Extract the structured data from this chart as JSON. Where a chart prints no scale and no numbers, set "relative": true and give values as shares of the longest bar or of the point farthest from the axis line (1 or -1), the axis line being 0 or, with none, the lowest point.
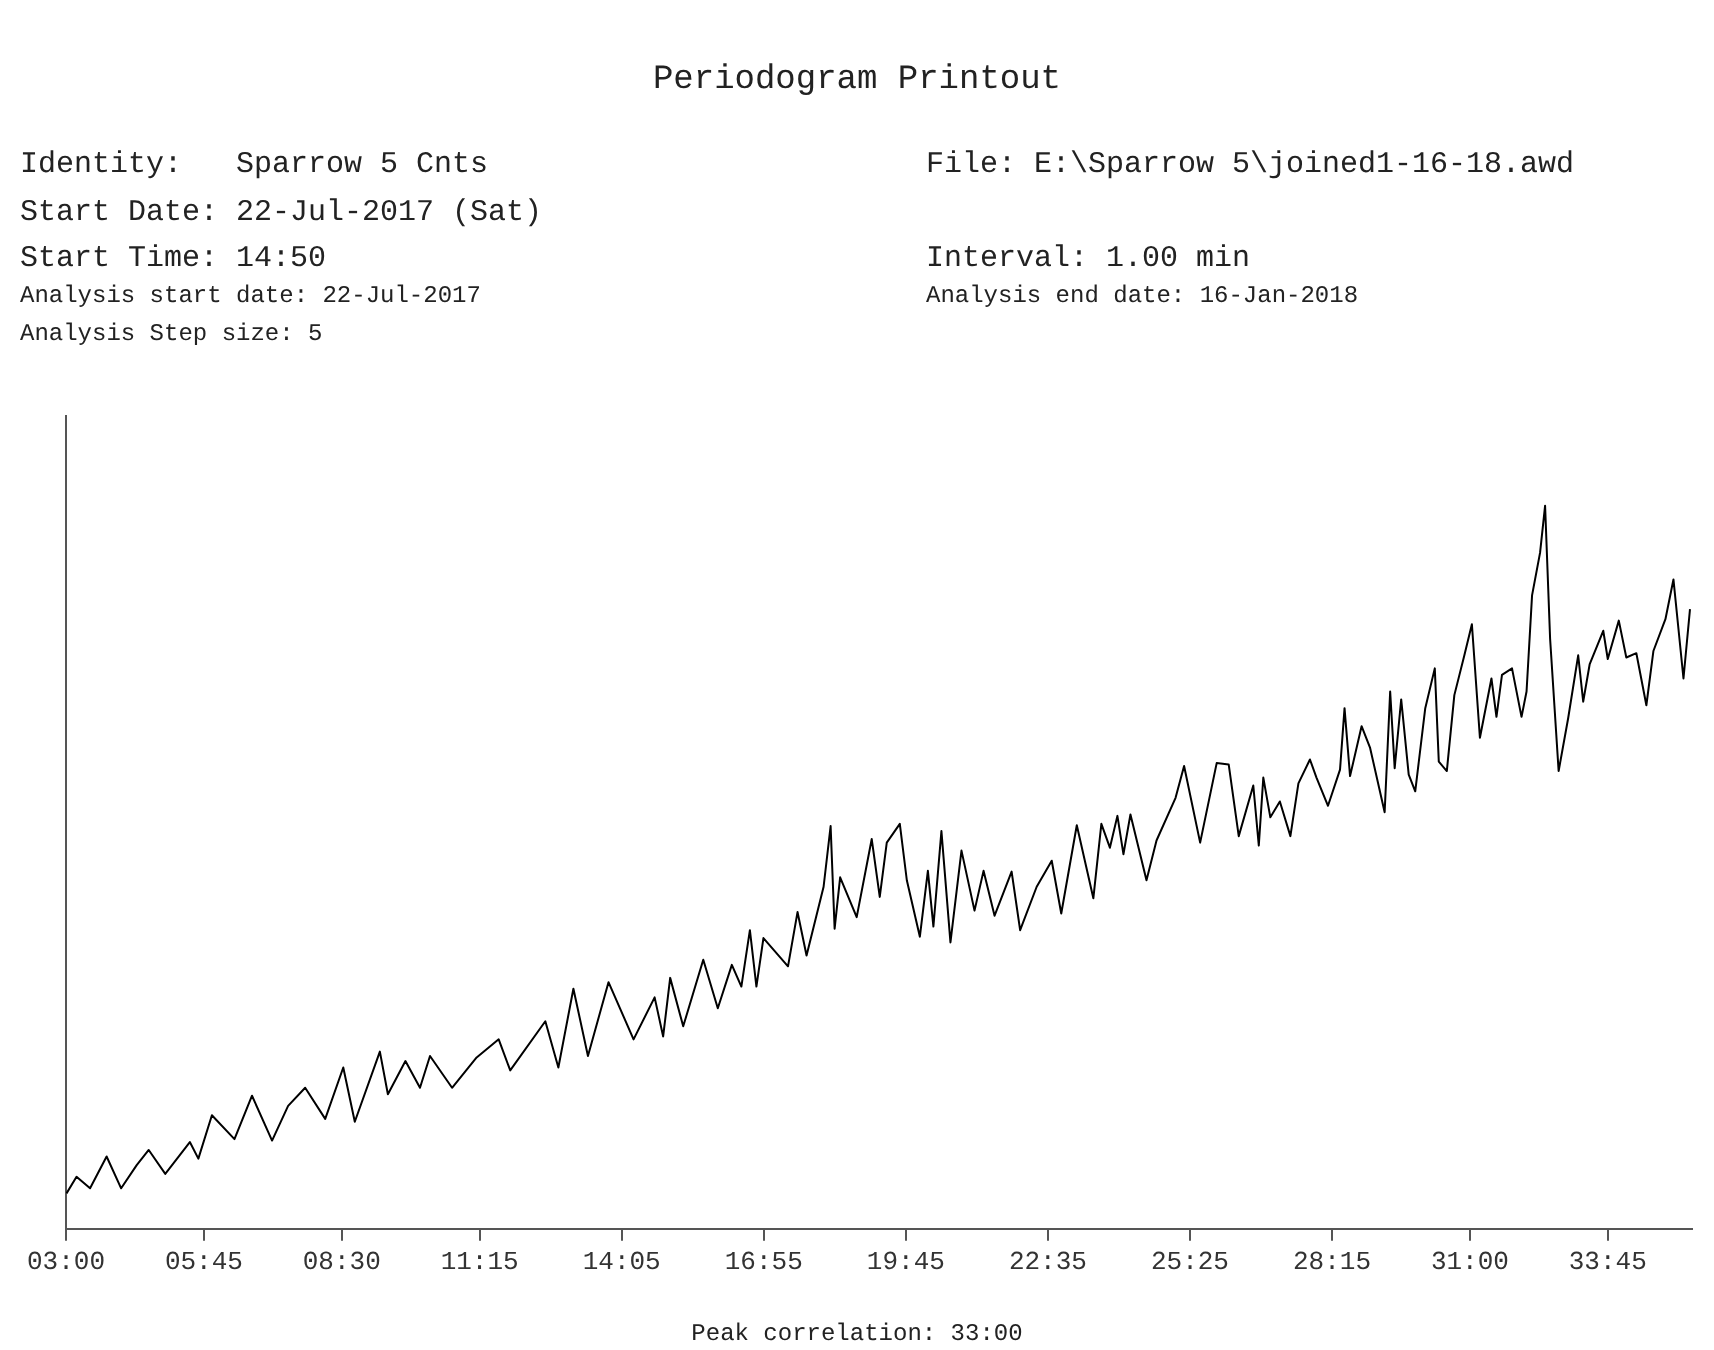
{
  "chart_data": {
    "type": "line",
    "title": "Periodogram Printout",
    "relative": true,
    "grid": false,
    "legend": false,
    "annotations": [
      "Identity:   Sparrow 5 Cnts",
      "File: E:\\Sparrow 5\\joined1-16-18.awd",
      "Start Date: 22-Jul-2017 (Sat)",
      "Start Time: 14:50",
      "Interval: 1.00 min",
      "Analysis start date: 22-Jul-2017",
      "Analysis end date: 16-Jan-2018",
      "Analysis Step size: 5",
      "Peak correlation: 33:00"
    ],
    "xlim": [
      3,
      35.43
    ],
    "xticks": [
      {
        "value": 3,
        "label": "03:00"
      },
      {
        "value": 5.75,
        "label": "05:45"
      },
      {
        "value": 8.5,
        "label": "08:30"
      },
      {
        "value": 11.25,
        "label": "11:15"
      },
      {
        "value": 14.0833,
        "label": "14:05"
      },
      {
        "value": 16.9167,
        "label": "16:55"
      },
      {
        "value": 19.75,
        "label": "19:45"
      },
      {
        "value": 22.5833,
        "label": "22:35"
      },
      {
        "value": 25.4167,
        "label": "25:25"
      },
      {
        "value": 28.25,
        "label": "28:15"
      },
      {
        "value": 31,
        "label": "31:00"
      },
      {
        "value": 33.75,
        "label": "33:45"
      }
    ],
    "series": [
      {
        "color": "#000000",
        "x": [
          3.01,
          3.21,
          3.48,
          3.81,
          4.1,
          4.41,
          4.65,
          4.98,
          5.47,
          5.64,
          5.91,
          6.36,
          6.71,
          7.11,
          7.43,
          7.77,
          8.17,
          8.53,
          8.76,
          9.26,
          9.42,
          9.77,
          10.06,
          10.26,
          10.7,
          11.19,
          11.63,
          11.86,
          12.56,
          12.82,
          13.12,
          13.41,
          13.82,
          14.32,
          14.74,
          14.91,
          15.05,
          15.31,
          15.71,
          16.0,
          16.28,
          16.47,
          16.64,
          16.77,
          16.91,
          17.4,
          17.59,
          17.77,
          18.11,
          18.25,
          18.33,
          18.44,
          18.77,
          19.07,
          19.23,
          19.37,
          19.63,
          19.77,
          20.03,
          20.19,
          20.3,
          20.46,
          20.64,
          20.86,
          21.12,
          21.3,
          21.52,
          21.86,
          22.03,
          22.36,
          22.66,
          22.85,
          23.16,
          23.49,
          23.65,
          23.82,
          23.97,
          24.09,
          24.23,
          24.55,
          24.75,
          25.13,
          25.3,
          25.62,
          25.95,
          26.19,
          26.39,
          26.68,
          26.79,
          26.88,
          27.02,
          27.21,
          27.42,
          27.58,
          27.81,
          27.94,
          28.17,
          28.41,
          28.5,
          28.61,
          28.84,
          29.01,
          29.3,
          29.41,
          29.5,
          29.63,
          29.78,
          29.91,
          30.11,
          30.3,
          30.38,
          30.54,
          30.69,
          30.89,
          31.04,
          31.2,
          31.43,
          31.53,
          31.64,
          31.84,
          32.03,
          32.13,
          32.24,
          32.4,
          32.5,
          32.6,
          32.77,
          32.96,
          33.16,
          33.26,
          33.39,
          33.66,
          33.75,
          33.97,
          34.12,
          34.32,
          34.52,
          34.66,
          34.9,
          35.06,
          35.26,
          35.39
        ],
        "values": [
          0.049,
          0.072,
          0.056,
          0.1,
          0.056,
          0.088,
          0.109,
          0.076,
          0.12,
          0.097,
          0.157,
          0.124,
          0.184,
          0.122,
          0.17,
          0.195,
          0.152,
          0.223,
          0.148,
          0.245,
          0.186,
          0.232,
          0.195,
          0.239,
          0.195,
          0.237,
          0.262,
          0.219,
          0.287,
          0.223,
          0.332,
          0.239,
          0.341,
          0.262,
          0.32,
          0.266,
          0.347,
          0.28,
          0.372,
          0.305,
          0.365,
          0.335,
          0.413,
          0.335,
          0.402,
          0.363,
          0.438,
          0.378,
          0.473,
          0.557,
          0.415,
          0.486,
          0.431,
          0.539,
          0.459,
          0.534,
          0.56,
          0.482,
          0.404,
          0.495,
          0.418,
          0.55,
          0.396,
          0.523,
          0.44,
          0.495,
          0.433,
          0.494,
          0.413,
          0.473,
          0.509,
          0.436,
          0.558,
          0.457,
          0.56,
          0.527,
          0.571,
          0.518,
          0.573,
          0.482,
          0.537,
          0.596,
          0.64,
          0.534,
          0.644,
          0.642,
          0.543,
          0.613,
          0.53,
          0.624,
          0.569,
          0.591,
          0.543,
          0.616,
          0.649,
          0.624,
          0.585,
          0.635,
          0.72,
          0.626,
          0.695,
          0.665,
          0.576,
          0.743,
          0.637,
          0.732,
          0.628,
          0.605,
          0.72,
          0.775,
          0.646,
          0.633,
          0.738,
          0.793,
          0.836,
          0.679,
          0.761,
          0.708,
          0.766,
          0.775,
          0.708,
          0.743,
          0.876,
          0.935,
          1,
          0.816,
          0.633,
          0.706,
          0.793,
          0.729,
          0.781,
          0.827,
          0.788,
          0.841,
          0.79,
          0.796,
          0.724,
          0.799,
          0.843,
          0.898,
          0.761,
          0.857
        ]
      }
    ]
  }
}
